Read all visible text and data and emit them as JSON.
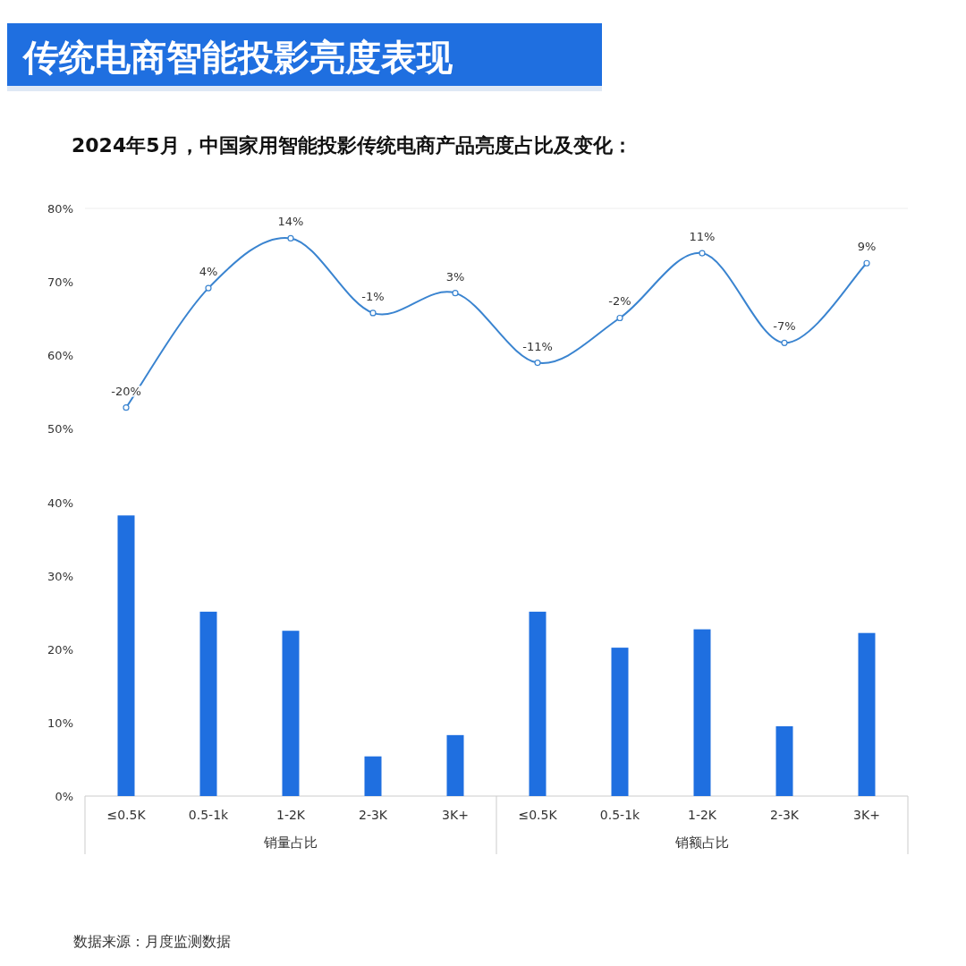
{
  "chart_data": {
    "type": "bar",
    "title": "传统电商智能投影亮度表现",
    "subtitle": "2024年5月，中国家用智能投影传统电商产品亮度占比及变化：",
    "categories": [
      "≤0.5K",
      "0.5-1k",
      "1-2K",
      "2-3K",
      "3K+",
      "≤0.5K",
      "0.5-1k",
      "1-2K",
      "2-3K",
      "3K+"
    ],
    "ylim": [
      0,
      80
    ],
    "yticks": [
      {
        "value": 0,
        "label": "0%"
      },
      {
        "value": 10,
        "label": "10%"
      },
      {
        "value": 20,
        "label": "20%"
      },
      {
        "value": 30,
        "label": "30%"
      },
      {
        "value": 40,
        "label": "40%"
      },
      {
        "value": 50,
        "label": "50%"
      },
      {
        "value": 60,
        "label": "60%"
      },
      {
        "value": 70,
        "label": "70%"
      },
      {
        "value": 80,
        "label": "80%"
      }
    ],
    "y2lim": [
      -98,
      20
    ],
    "grid": false,
    "marker": "circle",
    "line_style": "solid",
    "annotations": [
      "销量占比",
      "销额占比",
      "数据来源：月度监测数据"
    ],
    "series": [
      {
        "color": "#1f6fe0",
        "values": [
          38.2,
          25.1,
          22.5,
          5.4,
          8.3,
          25.1,
          20.2,
          22.7,
          9.5,
          22.2
        ]
      },
      {
        "type": "line",
        "axis": "y2",
        "color": "#3a84d0",
        "values": [
          -20,
          4,
          14,
          -1,
          3,
          -11,
          -2,
          11,
          -7,
          9
        ],
        "value_labels": [
          "-20%",
          "4%",
          "14%",
          "-1%",
          "3%",
          "-11%",
          "-2%",
          "11%",
          "-7%",
          "9%"
        ]
      }
    ]
  }
}
